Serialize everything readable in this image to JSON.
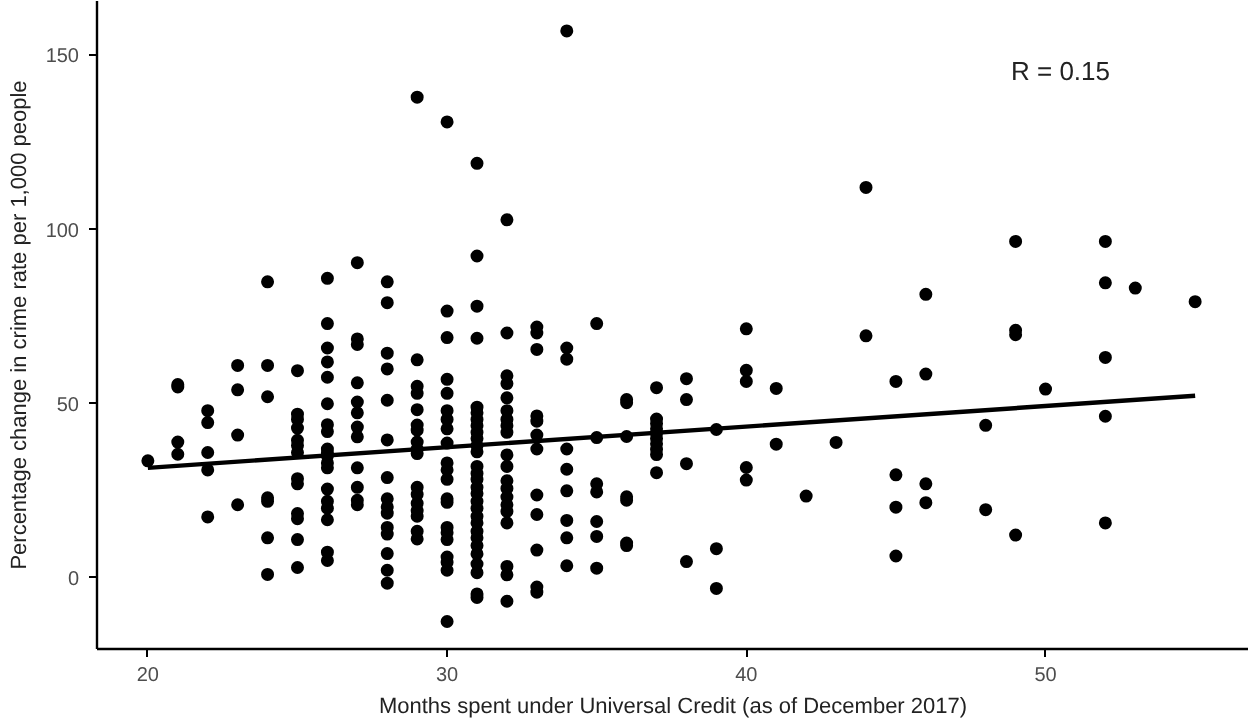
{
  "chart_data": {
    "type": "scatter",
    "xlabel": "Months spent under Universal Credit (as of December 2017)",
    "ylabel": "Percentage change in crime rate per 1,000 people",
    "annotations": [
      "R = 0.15"
    ],
    "xlim": [
      18.3,
      56.8
    ],
    "ylim": [
      -20.4,
      165.6
    ],
    "xticks": [
      20,
      30,
      40,
      50
    ],
    "yticks": [
      0,
      50,
      100,
      150
    ],
    "grid": false,
    "series": [
      {
        "marker": "circle",
        "color": "#000000",
        "x": [
          20,
          21,
          21,
          21,
          21,
          22,
          22,
          22,
          22,
          22,
          23,
          23,
          23,
          23,
          24,
          24,
          24,
          24,
          24,
          24,
          24,
          25,
          25,
          25,
          25,
          25,
          25,
          25,
          25,
          25,
          25,
          25,
          25,
          25,
          26,
          26,
          26,
          26,
          26,
          26,
          26,
          26,
          26,
          26,
          26,
          26,
          26,
          26,
          26,
          26,
          26,
          26,
          26,
          27,
          27,
          27,
          27,
          27,
          27,
          27,
          27,
          27,
          27,
          27,
          27,
          28,
          28,
          28,
          28,
          28,
          28,
          28,
          28,
          28,
          28,
          28,
          28,
          28,
          28,
          28,
          29,
          29,
          29,
          29,
          29,
          29,
          29,
          29,
          29,
          29,
          29,
          29,
          29,
          29,
          29,
          29,
          29,
          30,
          30,
          30,
          30,
          30,
          30,
          30,
          30,
          30,
          30,
          30,
          30,
          30,
          30,
          30,
          30,
          30,
          30,
          30,
          30,
          30,
          31,
          31,
          31,
          31,
          31,
          31,
          31,
          31,
          31,
          31,
          31,
          31,
          31,
          31,
          31,
          31,
          31,
          31,
          31,
          31,
          31,
          31,
          31,
          31,
          31,
          31,
          31,
          31,
          31,
          32,
          32,
          32,
          32,
          32,
          32,
          32,
          32,
          32,
          32,
          32,
          32,
          32,
          32,
          32,
          32,
          32,
          32,
          32,
          32,
          33,
          33,
          33,
          33,
          33,
          33,
          33,
          33,
          33,
          33,
          33,
          33,
          34,
          34,
          34,
          34,
          34,
          34,
          34,
          34,
          34,
          35,
          35,
          35,
          35,
          35,
          35,
          35,
          36,
          36,
          36,
          36,
          36,
          36,
          36,
          37,
          37,
          37,
          37,
          37,
          37,
          37,
          37,
          37,
          37,
          38,
          38,
          38,
          38,
          39,
          39,
          39,
          40,
          40,
          40,
          40,
          40,
          41,
          41,
          42,
          43,
          44,
          44,
          45,
          45,
          45,
          45,
          46,
          46,
          46,
          46,
          48,
          48,
          49,
          49,
          49,
          49,
          50,
          52,
          52,
          52,
          52,
          52,
          53,
          55
        ],
        "values": [
          33.6,
          55.5,
          54.8,
          39,
          35.5,
          48,
          44.6,
          36,
          31,
          17.5,
          61,
          54,
          41,
          21,
          85,
          61,
          52,
          23,
          22,
          11.5,
          1,
          59.5,
          47,
          45.5,
          43,
          39.5,
          38,
          36,
          28.5,
          27,
          18.5,
          17,
          11,
          3,
          86,
          73,
          66,
          62,
          57.6,
          50,
          44,
          42,
          37,
          36,
          35,
          33,
          31.6,
          25.5,
          22,
          20,
          16.7,
          7.4,
          5,
          90.5,
          68.6,
          67,
          56,
          50.5,
          47.4,
          43.3,
          40.5,
          31.6,
          26,
          22.3,
          21,
          85,
          79,
          64.5,
          60,
          51,
          39.6,
          28.8,
          22.7,
          20.4,
          18.6,
          14.5,
          12.6,
          7,
          2.2,
          -1.5,
          138,
          62.6,
          55,
          53,
          48.3,
          43.9,
          42.4,
          39,
          37,
          35.7,
          26,
          24,
          21.4,
          19.3,
          17.7,
          13.4,
          11.2,
          130.9,
          76.6,
          69,
          57,
          53,
          48,
          45.5,
          42.8,
          38.7,
          33,
          31,
          28.3,
          22.7,
          21.7,
          14.5,
          13,
          11,
          6,
          4.5,
          2.2,
          -12.5,
          119,
          92.4,
          78,
          68.8,
          49,
          47.4,
          45.5,
          43.7,
          41.8,
          40,
          38,
          36.2,
          32,
          30,
          28.3,
          26,
          24.2,
          22,
          20,
          17.7,
          15.8,
          13.4,
          11.5,
          9.3,
          6.9,
          4,
          1.5,
          -4.6,
          -5.6,
          102.8,
          70.3,
          58,
          55.8,
          51.7,
          48,
          45.5,
          43.7,
          41.8,
          35.3,
          32,
          27.9,
          25.7,
          23.2,
          21,
          19.1,
          15.8,
          3.3,
          0.9,
          -6.7,
          72,
          70.3,
          65.6,
          46.5,
          45,
          41,
          37,
          23.8,
          18.2,
          8,
          -2.6,
          -4.1,
          157,
          66,
          62.8,
          37,
          31.2,
          25,
          16.5,
          11.5,
          3.5,
          73,
          40.3,
          27,
          24.7,
          16.2,
          11.9,
          2.8,
          51.2,
          50.3,
          40.6,
          23.3,
          22.3,
          10,
          9.3,
          54.6,
          45.6,
          44.3,
          42.8,
          41.5,
          40,
          38.5,
          36.9,
          35.4,
          30.2,
          57.2,
          51.2,
          32.8,
          4.7,
          42.6,
          8.4,
          -3,
          71.5,
          59.6,
          56.4,
          31.7,
          28.1,
          54.4,
          38.4,
          23.5,
          38.9,
          112.1,
          69.5,
          56.4,
          29.6,
          20.3,
          6.3,
          81.4,
          58.5,
          27,
          21.6,
          43.8,
          19.6,
          96.6,
          71.1,
          69.8,
          12.3,
          54.2,
          96.6,
          84.7,
          63.3,
          46.4,
          15.8,
          83.2,
          79.3
        ]
      },
      {
        "type": "line",
        "color": "#000000",
        "x": [
          20,
          55
        ],
        "values": [
          31.6,
          52.3
        ]
      }
    ]
  }
}
